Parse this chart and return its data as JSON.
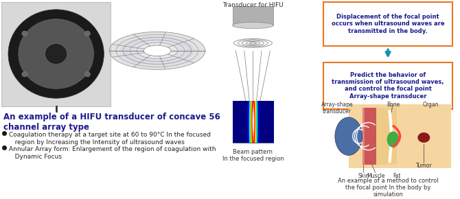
{
  "bg_color": "#ffffff",
  "title": "An example of a HIFU transducer of concave 56\nchannel array type",
  "title_color": "#1a1a8c",
  "title_fontsize": 8.5,
  "bullet1": "Coagulation therapy at a target site at 60 to 90°C In the focused\n   region by Increasing the Intensity of ultrasound waves",
  "bullet2": "Annular Array form: Enlargement of the region of coagulation with\n   Dynamic Focus",
  "bullet_fontsize": 6.5,
  "bullet_color": "#222222",
  "transducer_label": "Transducer for HIFU",
  "box1_text": "Displacement of the focal point\noccurs when ultrasound waves are\ntransmitted in the body.",
  "box2_text": "Predict the behavior of\ntransmission of ultrasound waves,\nand control the focal point\nArray-shape transducer",
  "box_border_color": "#e87722",
  "box_text_color": "#1a1a8c",
  "beam_label": "Beam pattern\nIn the focused region",
  "sim_label": "An example of a method to control\nthe focal point In the body by\nsimulation",
  "array_label": "Array-shape\ntransducer",
  "bone_label": "Bone",
  "organ_label": "Organ",
  "tumor_label": "Tumor",
  "skin_label": "Skin",
  "muscle_label": "Muscle",
  "fat_label": "Fat"
}
